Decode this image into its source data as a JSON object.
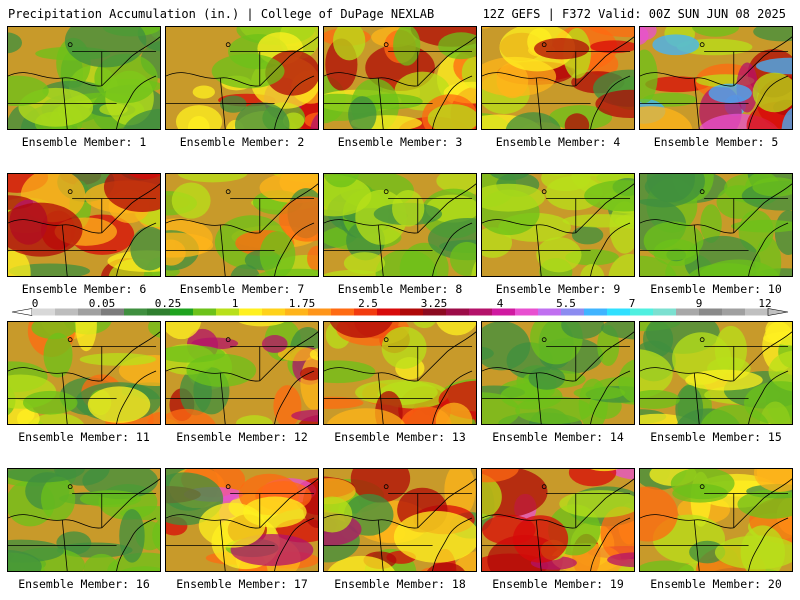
{
  "header": {
    "left": "Precipitation Accumulation (in.) | College of DuPage NEXLAB",
    "right": "12Z GEFS | F372 Valid: 00Z SUN JUN 08 2025"
  },
  "member_label_prefix": "Ensemble Member:",
  "members": [
    {
      "number": "1"
    },
    {
      "number": "2"
    },
    {
      "number": "3"
    },
    {
      "number": "4"
    },
    {
      "number": "5"
    },
    {
      "number": "6"
    },
    {
      "number": "7"
    },
    {
      "number": "8"
    },
    {
      "number": "9"
    },
    {
      "number": "10"
    },
    {
      "number": "11"
    },
    {
      "number": "12"
    },
    {
      "number": "13"
    },
    {
      "number": "14"
    },
    {
      "number": "15"
    },
    {
      "number": "16"
    },
    {
      "number": "17"
    },
    {
      "number": "18"
    },
    {
      "number": "19"
    },
    {
      "number": "20"
    }
  ],
  "colorbar": {
    "ticks": [
      "0",
      "0.05",
      "0.25",
      "1",
      "1.75",
      "2.5",
      "3.25",
      "4",
      "5.5",
      "7",
      "9",
      "12"
    ],
    "colors": [
      "#d8d8d8",
      "#bdbdbd",
      "#a0a0a0",
      "#7c7c7c",
      "#3f8f3f",
      "#2f7f2f",
      "#1fa31f",
      "#6cc21a",
      "#b8e01a",
      "#fff020",
      "#ffd21a",
      "#ffb41a",
      "#ff951a",
      "#ff6a12",
      "#f23a0e",
      "#d80a0a",
      "#b00808",
      "#8c0a20",
      "#9c0c48",
      "#b4126a",
      "#d01aa0",
      "#e850d0",
      "#c070f0",
      "#8c8cf0",
      "#40b4ff",
      "#30e0ff",
      "#50f0e0",
      "#7ce0d0",
      "#a8a8a8",
      "#8a8a8a",
      "#a0a0a0",
      "#c0c0c0"
    ]
  },
  "base_map_color": "#c89a2a"
}
